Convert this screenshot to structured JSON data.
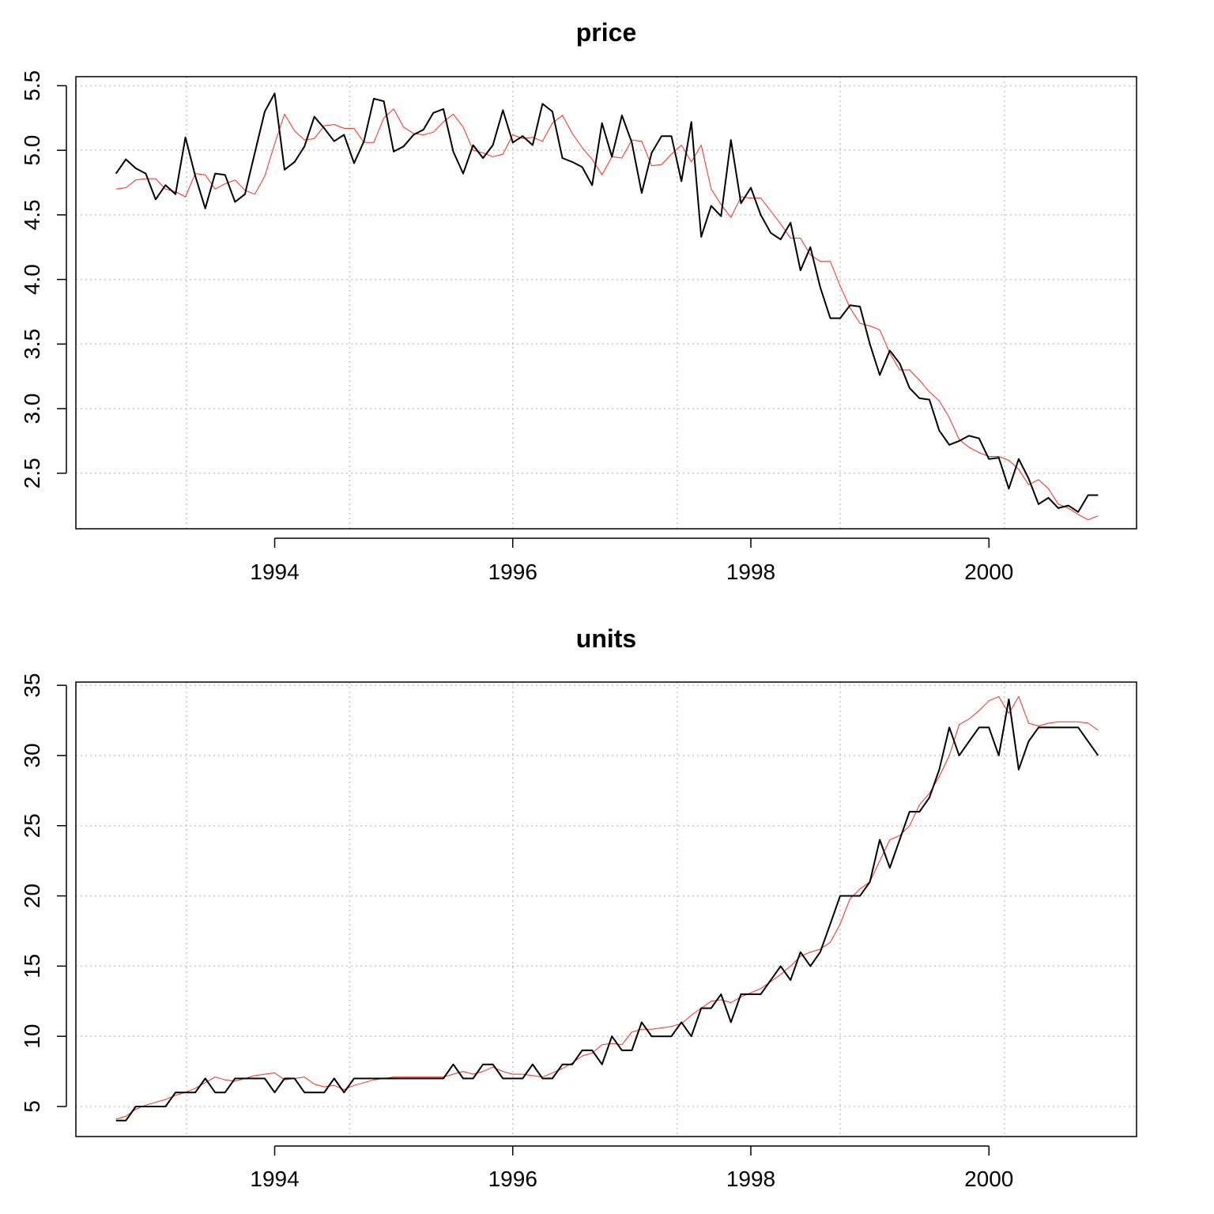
{
  "chart_data": [
    {
      "type": "line",
      "title": "price",
      "x": [
        1992.667,
        1992.75,
        1992.833,
        1992.917,
        1993,
        1993.083,
        1993.167,
        1993.25,
        1993.333,
        1993.417,
        1993.5,
        1993.583,
        1993.667,
        1993.75,
        1993.833,
        1993.917,
        1994,
        1994.083,
        1994.167,
        1994.25,
        1994.333,
        1994.417,
        1994.5,
        1994.583,
        1994.667,
        1994.75,
        1994.833,
        1994.917,
        1995,
        1995.083,
        1995.167,
        1995.25,
        1995.333,
        1995.417,
        1995.5,
        1995.583,
        1995.667,
        1995.75,
        1995.833,
        1995.917,
        1996,
        1996.083,
        1996.167,
        1996.25,
        1996.333,
        1996.417,
        1996.5,
        1996.583,
        1996.667,
        1996.75,
        1996.833,
        1996.917,
        1997,
        1997.083,
        1997.167,
        1997.25,
        1997.333,
        1997.417,
        1997.5,
        1997.583,
        1997.667,
        1997.75,
        1997.833,
        1997.917,
        1998,
        1998.083,
        1998.167,
        1998.25,
        1998.333,
        1998.417,
        1998.5,
        1998.583,
        1998.667,
        1998.75,
        1998.833,
        1998.917,
        1999,
        1999.083,
        1999.167,
        1999.25,
        1999.333,
        1999.417,
        1999.5,
        1999.583,
        1999.667,
        1999.75,
        1999.833,
        1999.917,
        2000,
        2000.083,
        2000.167,
        2000.25,
        2000.333,
        2000.417,
        2000.5,
        2000.583,
        2000.667,
        2000.75,
        2000.833,
        2000.917
      ],
      "series": [
        {
          "color": "#000000",
          "values": [
            4.82,
            4.93,
            4.86,
            4.82,
            4.62,
            4.73,
            4.66,
            5.1,
            4.8,
            4.55,
            4.82,
            4.81,
            4.6,
            4.66,
            4.98,
            5.3,
            5.44,
            4.85,
            4.91,
            5.03,
            5.26,
            5.17,
            5.07,
            5.12,
            4.9,
            5.07,
            5.4,
            5.38,
            4.99,
            5.03,
            5.12,
            5.16,
            5.29,
            5.32,
            4.99,
            4.82,
            5.04,
            4.94,
            5.04,
            5.31,
            5.06,
            5.11,
            5.04,
            5.36,
            5.3,
            4.94,
            4.91,
            4.87,
            4.73,
            5.21,
            4.95,
            5.27,
            5.06,
            4.67,
            4.98,
            5.11,
            5.11,
            4.76,
            5.22,
            4.33,
            4.57,
            4.49,
            5.08,
            4.59,
            4.71,
            4.5,
            4.36,
            4.31,
            4.44,
            4.07,
            4.25,
            3.94,
            3.7,
            3.7,
            3.8,
            3.79,
            3.5,
            3.26,
            3.45,
            3.35,
            3.16,
            3.08,
            3.07,
            2.83,
            2.72,
            2.75,
            2.79,
            2.77,
            2.61,
            2.62,
            2.38,
            2.61,
            2.46,
            2.26,
            2.31,
            2.23,
            2.25,
            2.2,
            2.33,
            2.33
          ]
        },
        {
          "color": "#ff2a1a",
          "values": [
            4.7,
            4.71,
            4.77,
            4.78,
            4.78,
            4.7,
            4.68,
            4.64,
            4.82,
            4.81,
            4.7,
            4.74,
            4.77,
            4.69,
            4.66,
            4.8,
            5.05,
            5.28,
            5.15,
            5.08,
            5.09,
            5.19,
            5.2,
            5.17,
            5.17,
            5.06,
            5.06,
            5.25,
            5.32,
            5.18,
            5.13,
            5.12,
            5.14,
            5.22,
            5.28,
            5.18,
            5.0,
            4.98,
            4.95,
            4.97,
            5.12,
            5.09,
            5.1,
            5.07,
            5.21,
            5.27,
            5.13,
            5.02,
            4.93,
            4.81,
            4.95,
            4.94,
            5.08,
            5.07,
            4.88,
            4.89,
            4.97,
            5.04,
            4.91,
            5.04,
            4.7,
            4.58,
            4.48,
            4.64,
            4.63,
            4.63,
            4.53,
            4.43,
            4.32,
            4.32,
            4.19,
            4.14,
            4.14,
            3.95,
            3.78,
            3.66,
            3.64,
            3.61,
            3.43,
            3.3,
            3.3,
            3.22,
            3.13,
            3.06,
            2.93,
            2.76,
            2.7,
            2.66,
            2.63,
            2.63,
            2.6,
            2.53,
            2.41,
            2.45,
            2.38,
            2.26,
            2.23,
            2.18,
            2.14,
            2.17
          ]
        }
      ],
      "xlim": [
        1992.33,
        2001.24
      ],
      "xticks": [
        1994,
        1996,
        1998,
        2000
      ],
      "ylim": [
        2.07,
        5.57
      ],
      "yticks": [
        2.5,
        {
          "value": 3,
          "label": "3.0"
        },
        3.5,
        {
          "value": 4,
          "label": "4.0"
        },
        4.5,
        {
          "value": 5,
          "label": "5.0"
        },
        5.5
      ],
      "xgrid": [
        1993.26,
        1994.63,
        1996,
        1997.38,
        1998.75,
        2000.13
      ],
      "grid": true
    },
    {
      "type": "line",
      "title": "units",
      "x": [
        1992.667,
        1992.75,
        1992.833,
        1992.917,
        1993,
        1993.083,
        1993.167,
        1993.25,
        1993.333,
        1993.417,
        1993.5,
        1993.583,
        1993.667,
        1993.75,
        1993.833,
        1993.917,
        1994,
        1994.083,
        1994.167,
        1994.25,
        1994.333,
        1994.417,
        1994.5,
        1994.583,
        1994.667,
        1994.75,
        1994.833,
        1994.917,
        1995,
        1995.083,
        1995.167,
        1995.25,
        1995.333,
        1995.417,
        1995.5,
        1995.583,
        1995.667,
        1995.75,
        1995.833,
        1995.917,
        1996,
        1996.083,
        1996.167,
        1996.25,
        1996.333,
        1996.417,
        1996.5,
        1996.583,
        1996.667,
        1996.75,
        1996.833,
        1996.917,
        1997,
        1997.083,
        1997.167,
        1997.25,
        1997.333,
        1997.417,
        1997.5,
        1997.583,
        1997.667,
        1997.75,
        1997.833,
        1997.917,
        1998,
        1998.083,
        1998.167,
        1998.25,
        1998.333,
        1998.417,
        1998.5,
        1998.583,
        1998.667,
        1998.75,
        1998.833,
        1998.917,
        1999,
        1999.083,
        1999.167,
        1999.25,
        1999.333,
        1999.417,
        1999.5,
        1999.583,
        1999.667,
        1999.75,
        1999.833,
        1999.917,
        2000,
        2000.083,
        2000.167,
        2000.25,
        2000.333,
        2000.417,
        2000.5,
        2000.583,
        2000.667,
        2000.75,
        2000.833,
        2000.917
      ],
      "series": [
        {
          "color": "#000000",
          "values": [
            4,
            4,
            5,
            5,
            5,
            5,
            6,
            6,
            6,
            7,
            6,
            6,
            7,
            7,
            7,
            7,
            6,
            7,
            7,
            6,
            6,
            6,
            7,
            6,
            7,
            7,
            7,
            7,
            7,
            7,
            7,
            7,
            7,
            7,
            8,
            7,
            7,
            8,
            8,
            7,
            7,
            7,
            8,
            7,
            7,
            8,
            8,
            9,
            9,
            8,
            10,
            9,
            9,
            11,
            10,
            10,
            10,
            11,
            10,
            12,
            12,
            13,
            11,
            13,
            13,
            13,
            14,
            15,
            14,
            16,
            15,
            16,
            18,
            20,
            20,
            20,
            21,
            24,
            22,
            24,
            26,
            26,
            27,
            29,
            32,
            30,
            31,
            32,
            32,
            30,
            34,
            29,
            31,
            32,
            32,
            32,
            32,
            32,
            31,
            30
          ]
        },
        {
          "color": "#ff2a1a",
          "values": [
            4.1,
            4.3,
            4.8,
            5.1,
            5.3,
            5.5,
            5.8,
            6.0,
            6.3,
            6.7,
            7.1,
            6.9,
            6.8,
            7.0,
            7.2,
            7.3,
            7.4,
            6.9,
            7.0,
            7.1,
            6.6,
            6.4,
            6.5,
            6.2,
            6.5,
            6.7,
            6.9,
            7.0,
            7.1,
            7.1,
            7.1,
            7.1,
            7.1,
            7.1,
            7.3,
            7.5,
            7.3,
            7.5,
            7.8,
            7.5,
            7.3,
            7.3,
            7.2,
            7.1,
            7.4,
            7.7,
            8.1,
            8.6,
            8.8,
            9.4,
            9.5,
            9.4,
            10.3,
            10.5,
            10.5,
            10.6,
            10.7,
            10.9,
            11.5,
            12.0,
            12.5,
            12.6,
            12.4,
            12.8,
            13.1,
            13.4,
            13.9,
            14.4,
            15.0,
            15.7,
            16.0,
            16.2,
            16.7,
            18.0,
            19.8,
            20.5,
            21.0,
            22.5,
            24.0,
            24.3,
            25.0,
            26.5,
            27.3,
            28.5,
            30.0,
            32.2,
            32.6,
            33.2,
            33.9,
            34.2,
            33.0,
            34.2,
            32.3,
            32.1,
            32.3,
            32.4,
            32.4,
            32.4,
            32.3,
            31.8
          ]
        }
      ],
      "xlim": [
        1992.33,
        2001.24
      ],
      "xticks": [
        1994,
        1996,
        1998,
        2000
      ],
      "ylim": [
        2.86,
        35.23
      ],
      "yticks": [
        5,
        10,
        15,
        20,
        25,
        30,
        35
      ],
      "xgrid": [
        1993.26,
        1994.63,
        1996,
        1997.38,
        1998.75,
        2000.13
      ],
      "grid": true
    }
  ]
}
